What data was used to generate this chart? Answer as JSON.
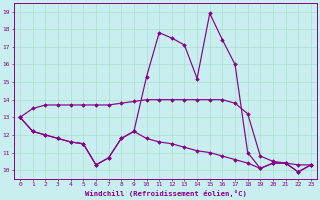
{
  "xlabel": "Windchill (Refroidissement éolien,°C)",
  "x": [
    0,
    1,
    2,
    3,
    4,
    5,
    6,
    7,
    8,
    9,
    10,
    11,
    12,
    13,
    14,
    15,
    16,
    17,
    18,
    19,
    20,
    21,
    22,
    23
  ],
  "line1": [
    13.0,
    13.5,
    13.7,
    13.7,
    13.7,
    13.7,
    13.7,
    13.7,
    13.8,
    13.9,
    14.0,
    14.0,
    14.0,
    14.0,
    14.0,
    14.0,
    14.0,
    13.8,
    13.2,
    10.8,
    10.5,
    10.4,
    10.3,
    10.3
  ],
  "line2": [
    13.0,
    12.2,
    12.0,
    11.8,
    11.6,
    11.5,
    10.3,
    10.7,
    11.8,
    12.2,
    11.8,
    11.6,
    11.5,
    11.3,
    11.1,
    11.0,
    10.8,
    10.6,
    10.4,
    10.1,
    10.4,
    10.4,
    9.9,
    10.3
  ],
  "line3": [
    13.0,
    12.2,
    12.0,
    11.8,
    11.6,
    11.5,
    10.3,
    10.7,
    11.8,
    12.2,
    15.3,
    17.8,
    17.5,
    17.1,
    15.2,
    18.9,
    17.4,
    16.0,
    11.0,
    10.1,
    10.4,
    10.4,
    9.9,
    10.3
  ],
  "line_color": "#880088",
  "bg_color": "#C8EEF0",
  "grid_color": "#AADDCC",
  "ylim": [
    9.5,
    19.5
  ],
  "xlim": [
    -0.5,
    23.5
  ],
  "yticks": [
    10,
    11,
    12,
    13,
    14,
    15,
    16,
    17,
    18,
    19
  ],
  "xticks": [
    0,
    1,
    2,
    3,
    4,
    5,
    6,
    7,
    8,
    9,
    10,
    11,
    12,
    13,
    14,
    15,
    16,
    17,
    18,
    19,
    20,
    21,
    22,
    23
  ]
}
